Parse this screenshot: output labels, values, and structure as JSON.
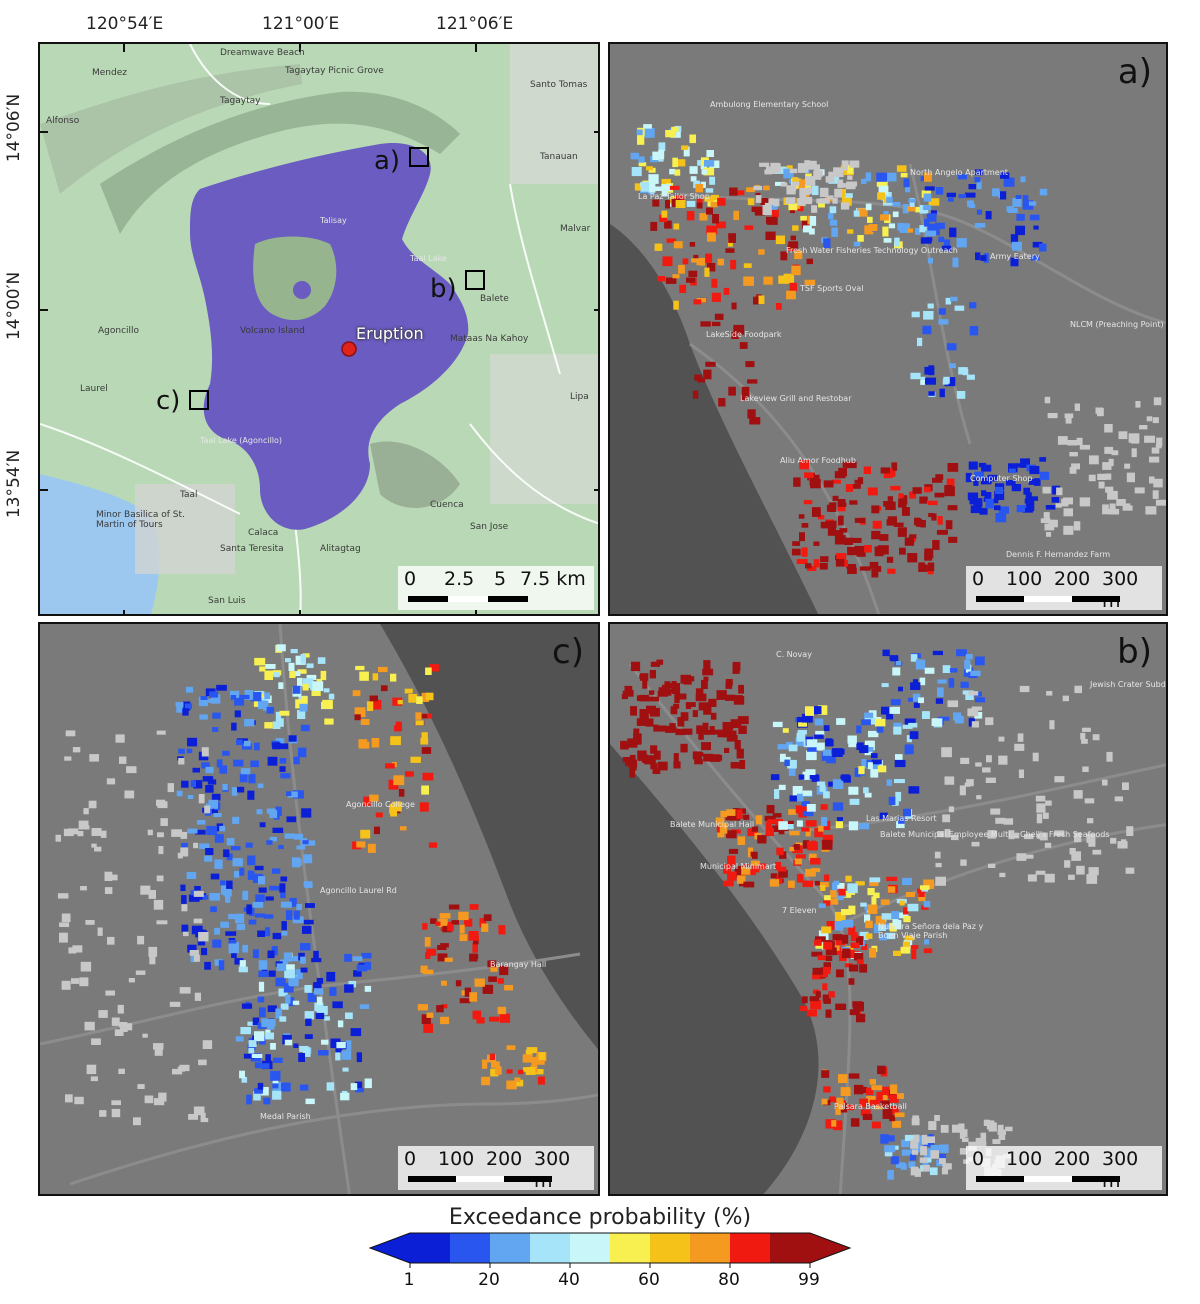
{
  "coordinates": {
    "lon_labels": [
      "120°54′E",
      "121°00′E",
      "121°06′E"
    ],
    "lat_labels": [
      "14°06′N",
      "14°00′N",
      "13°54′N"
    ]
  },
  "overview": {
    "lake_color": "#6a5cc0",
    "eruption_label": "Eruption",
    "box_labels": [
      "a)",
      "b)",
      "c)"
    ],
    "map_place_labels": [
      "Mendez",
      "Dreamwave Beach",
      "Tagaytay Picnic Grove",
      "Alfonso",
      "Tagaytay",
      "Santo Tomas",
      "Tanauan",
      "Malvar",
      "Talisay",
      "Taal Lake",
      "Volcano Island",
      "Agoncillo",
      "Laurel",
      "Balete",
      "Mataas Na Kahoy",
      "Lipa",
      "Cuenca",
      "Taal",
      "Calaca",
      "Santa Teresita",
      "Alitagtag",
      "San Jose",
      "San Luis",
      "Minor Basilica of St. Martin of Tours",
      "Taal Lake (Agoncillo)"
    ],
    "scale": {
      "labels": [
        "0",
        "2.5",
        "5",
        "7.5 km"
      ]
    }
  },
  "panel_a": {
    "letter": "a)",
    "place_labels": [
      "Ambulong Elementary School",
      "La Paz Tailor Shop",
      "Fresh Water Fisheries Technology Outreach",
      "TSF Sports Oval",
      "LakeSide Foodpark",
      "Lakeview Grill and Restobar",
      "Aliu Amor Foodhub",
      "North Angelo Apartment",
      "Army Eatery",
      "NLCM (Preaching Point)",
      "Dennis F. Hernandez Farm",
      "Computer Shop"
    ],
    "scale": {
      "labels": [
        "0",
        "100",
        "200",
        "300 m"
      ]
    }
  },
  "panel_b": {
    "letter": "b)",
    "place_labels": [
      "C. Novay",
      "Jewish Crater Subdivision",
      "Balete Municipal Hall",
      "Municipal Minimart",
      "Las Marias Resort",
      "Balete Municipal Employee Multi...",
      "Chell's Fresh Seafoods",
      "7 Eleven",
      "Nuestra Señora dela Paz y Buen Viaje Parish",
      "Palsara Basketball"
    ],
    "scale": {
      "labels": [
        "0",
        "100",
        "200",
        "300 m"
      ]
    }
  },
  "panel_c": {
    "letter": "c)",
    "place_labels": [
      "Agoncillo College",
      "Agoncillo Laurel Rd",
      "Medal Parish",
      "Barangay Hall"
    ],
    "scale": {
      "labels": [
        "0",
        "100",
        "200",
        "300 m"
      ]
    }
  },
  "colorbar": {
    "title": "Exceedance probability (%)",
    "ticks": [
      "1",
      "20",
      "40",
      "60",
      "80",
      "99"
    ],
    "colors": [
      "#0a1fd6",
      "#2a56f0",
      "#62a6f2",
      "#a6e4fa",
      "#c9f6f8",
      "#f8f050",
      "#f5c21a",
      "#f59a20",
      "#f01a10",
      "#a01010"
    ],
    "extend_low": "#0a1fd6",
    "extend_high": "#a01010"
  }
}
